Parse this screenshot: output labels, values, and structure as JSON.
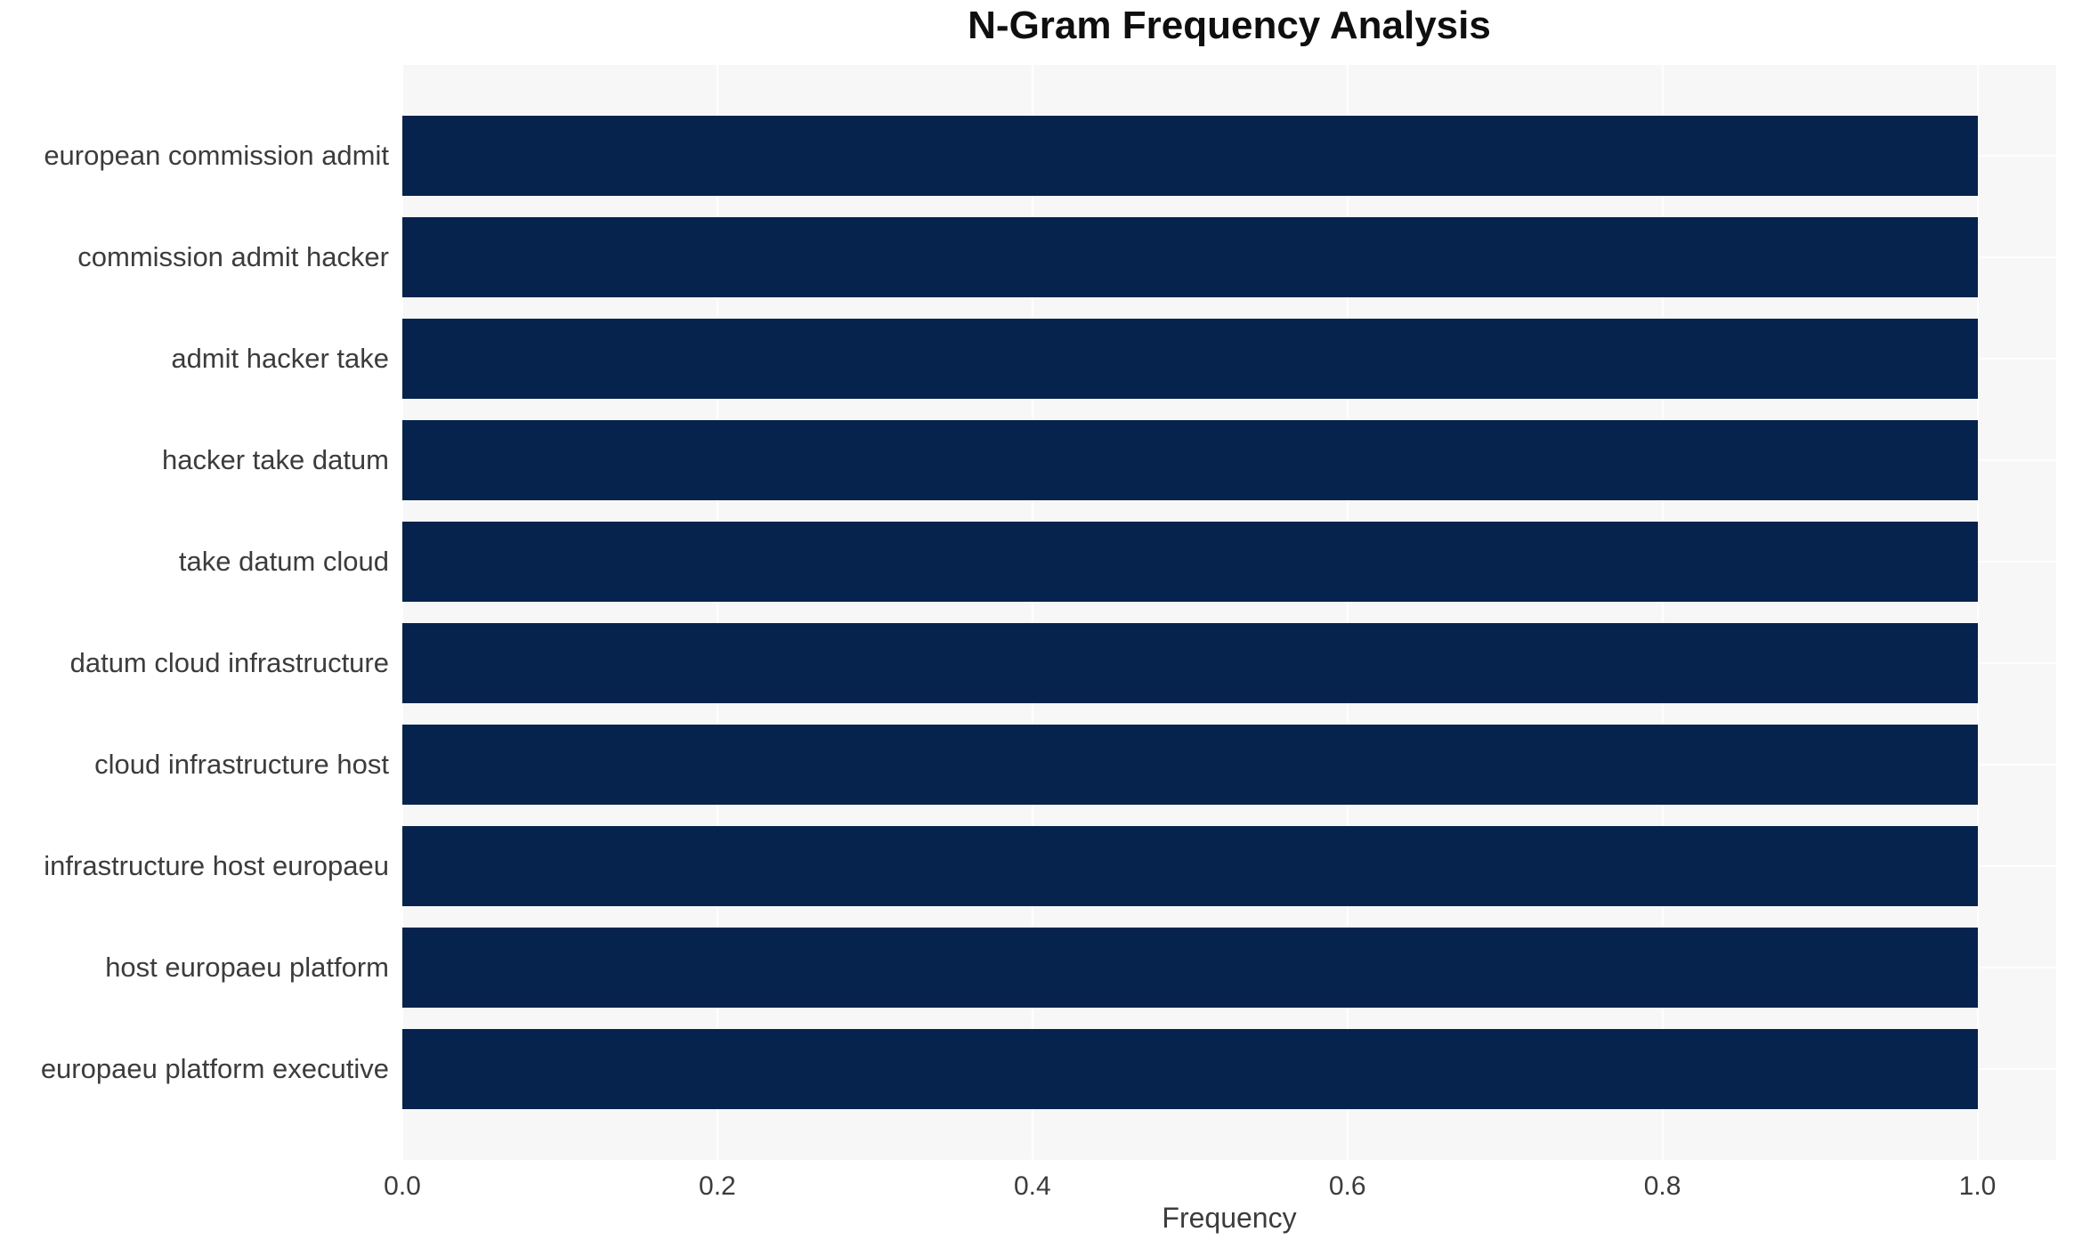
{
  "chart_data": {
    "type": "bar",
    "orientation": "horizontal",
    "title": "N-Gram Frequency Analysis",
    "xlabel": "Frequency",
    "ylabel": "",
    "categories": [
      "european commission admit",
      "commission admit hacker",
      "admit hacker take",
      "hacker take datum",
      "take datum cloud",
      "datum cloud infrastructure",
      "cloud infrastructure host",
      "infrastructure host europaeu",
      "host europaeu platform",
      "europaeu platform executive"
    ],
    "values": [
      1.0,
      1.0,
      1.0,
      1.0,
      1.0,
      1.0,
      1.0,
      1.0,
      1.0,
      1.0
    ],
    "xlim": [
      0,
      1.05
    ],
    "xticks": [
      0.0,
      0.2,
      0.4,
      0.6,
      0.8,
      1.0
    ],
    "xtick_labels": [
      "0.0",
      "0.2",
      "0.4",
      "0.6",
      "0.8",
      "1.0"
    ],
    "grid": true,
    "legend": "none",
    "colors": {
      "bar": "#05234d",
      "plot_background": "#f7f7f7",
      "gridline": "#ffffff",
      "tick_text": "#3c3c3c",
      "title_text": "#0f0f0f"
    }
  }
}
